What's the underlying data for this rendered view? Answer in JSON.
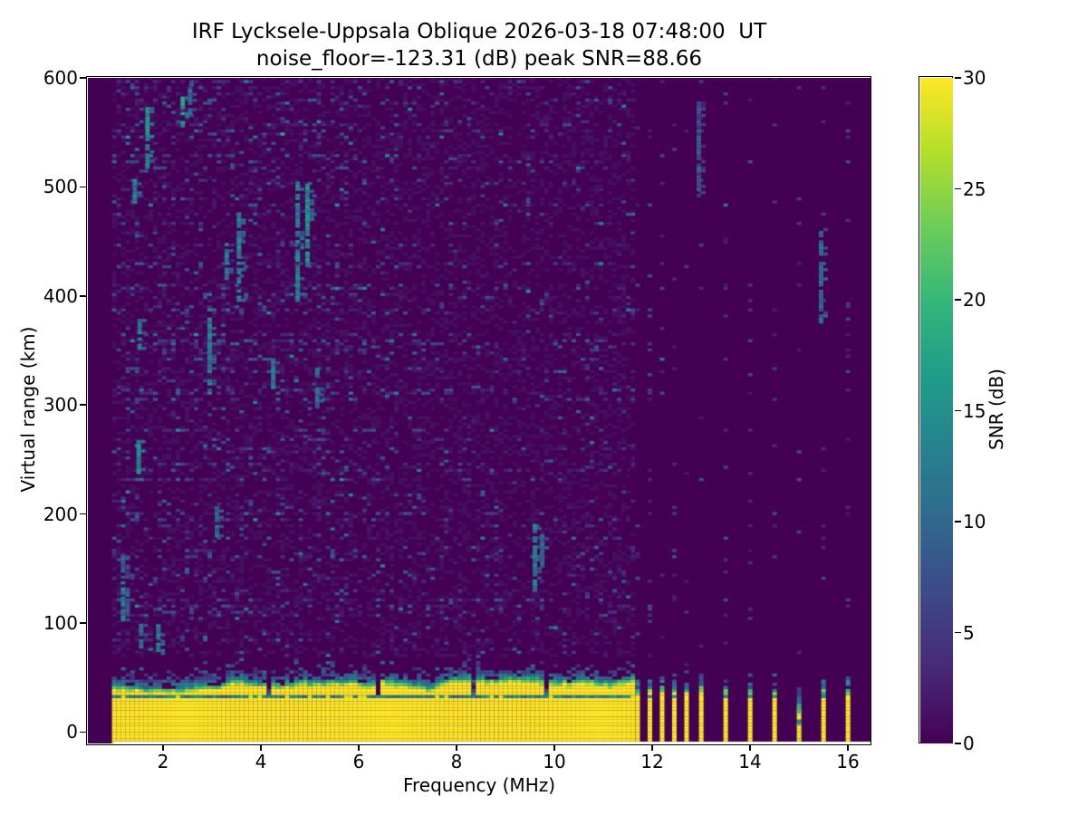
{
  "chart_data": {
    "type": "heatmap",
    "title": "IRF Lycksele-Uppsala Oblique 2026-03-18 07:48:00  UT",
    "subtitle": "noise_floor=-123.31 (dB) peak SNR=88.66",
    "xlabel": "Frequency (MHz)",
    "ylabel": "Virtual range (km)",
    "colorbar_label": "SNR (dB)",
    "colormap": "viridis",
    "xlim": [
      0.46,
      16.46
    ],
    "ylim": [
      -10.5,
      600
    ],
    "clim": [
      0,
      30
    ],
    "xticks": [
      2,
      4,
      6,
      8,
      10,
      12,
      14,
      16
    ],
    "yticks": [
      0,
      100,
      200,
      300,
      400,
      500,
      600
    ],
    "colorbar_ticks": [
      0,
      5,
      10,
      15,
      20,
      25,
      30
    ],
    "noise_floor_db": -123.31,
    "peak_snr_db": 88.66,
    "data_start_mhz": 1.0,
    "ground_band": {
      "f_range_mhz": [
        1.0,
        11.65
      ],
      "saturated_top_km": 40,
      "embedded_line_km": [
        31,
        34.5
      ],
      "scatter_top_km": 64,
      "notch_freqs_mhz": [
        4.15,
        6.4,
        8.35,
        9.85
      ]
    },
    "discrete_stripe_freqs_mhz": [
      11.7,
      11.95,
      12.2,
      12.45,
      12.7,
      13.0,
      13.5,
      14.0,
      14.5,
      15.0,
      15.5,
      16.0
    ],
    "broken_stripe_freqs_mhz": [
      15.0
    ],
    "echo_streaks": [
      {
        "f_mhz": 1.18,
        "km": [
          100,
          138
        ],
        "snr_db": 12
      },
      {
        "f_mhz": 1.18,
        "km": [
          142,
          166
        ],
        "snr_db": 10
      },
      {
        "f_mhz": 1.42,
        "km": [
          486,
          508
        ],
        "snr_db": 13
      },
      {
        "f_mhz": 1.5,
        "km": [
          238,
          268
        ],
        "snr_db": 14
      },
      {
        "f_mhz": 1.52,
        "km": [
          352,
          378
        ],
        "snr_db": 12
      },
      {
        "f_mhz": 1.55,
        "km": [
          78,
          102
        ],
        "snr_db": 11
      },
      {
        "f_mhz": 1.68,
        "km": [
          518,
          572
        ],
        "snr_db": 15
      },
      {
        "f_mhz": 1.9,
        "km": [
          72,
          100
        ],
        "snr_db": 12
      },
      {
        "f_mhz": 2.4,
        "km": [
          556,
          584
        ],
        "snr_db": 16
      },
      {
        "f_mhz": 2.55,
        "km": [
          568,
          592
        ],
        "snr_db": 10
      },
      {
        "f_mhz": 2.95,
        "km": [
          308,
          388
        ],
        "snr_db": 12
      },
      {
        "f_mhz": 3.1,
        "km": [
          180,
          206
        ],
        "snr_db": 11
      },
      {
        "f_mhz": 3.3,
        "km": [
          416,
          448
        ],
        "snr_db": 12
      },
      {
        "f_mhz": 3.55,
        "km": [
          396,
          478
        ],
        "snr_db": 13
      },
      {
        "f_mhz": 4.25,
        "km": [
          316,
          344
        ],
        "snr_db": 12
      },
      {
        "f_mhz": 4.75,
        "km": [
          396,
          506
        ],
        "snr_db": 13
      },
      {
        "f_mhz": 4.95,
        "km": [
          428,
          502
        ],
        "snr_db": 14
      },
      {
        "f_mhz": 5.15,
        "km": [
          298,
          332
        ],
        "snr_db": 10
      },
      {
        "f_mhz": 9.6,
        "km": [
          130,
          190
        ],
        "snr_db": 12
      },
      {
        "f_mhz": 9.75,
        "km": [
          152,
          182
        ],
        "snr_db": 10
      },
      {
        "f_mhz": 12.95,
        "km": [
          492,
          580
        ],
        "snr_db": 7
      },
      {
        "f_mhz": 15.45,
        "km": [
          376,
          462
        ],
        "snr_db": 11
      }
    ],
    "noise": {
      "seed": 20260318,
      "cell_mhz": 0.093,
      "cell_km": 2.83,
      "low_band_density": 1.0,
      "high_band_density": 0.62,
      "stripe_density": 0.55
    },
    "colors": {
      "figure_bg": "#ffffff",
      "text": "#000000",
      "cmap_low": "#440154",
      "cmap_high": "#fde725"
    }
  }
}
